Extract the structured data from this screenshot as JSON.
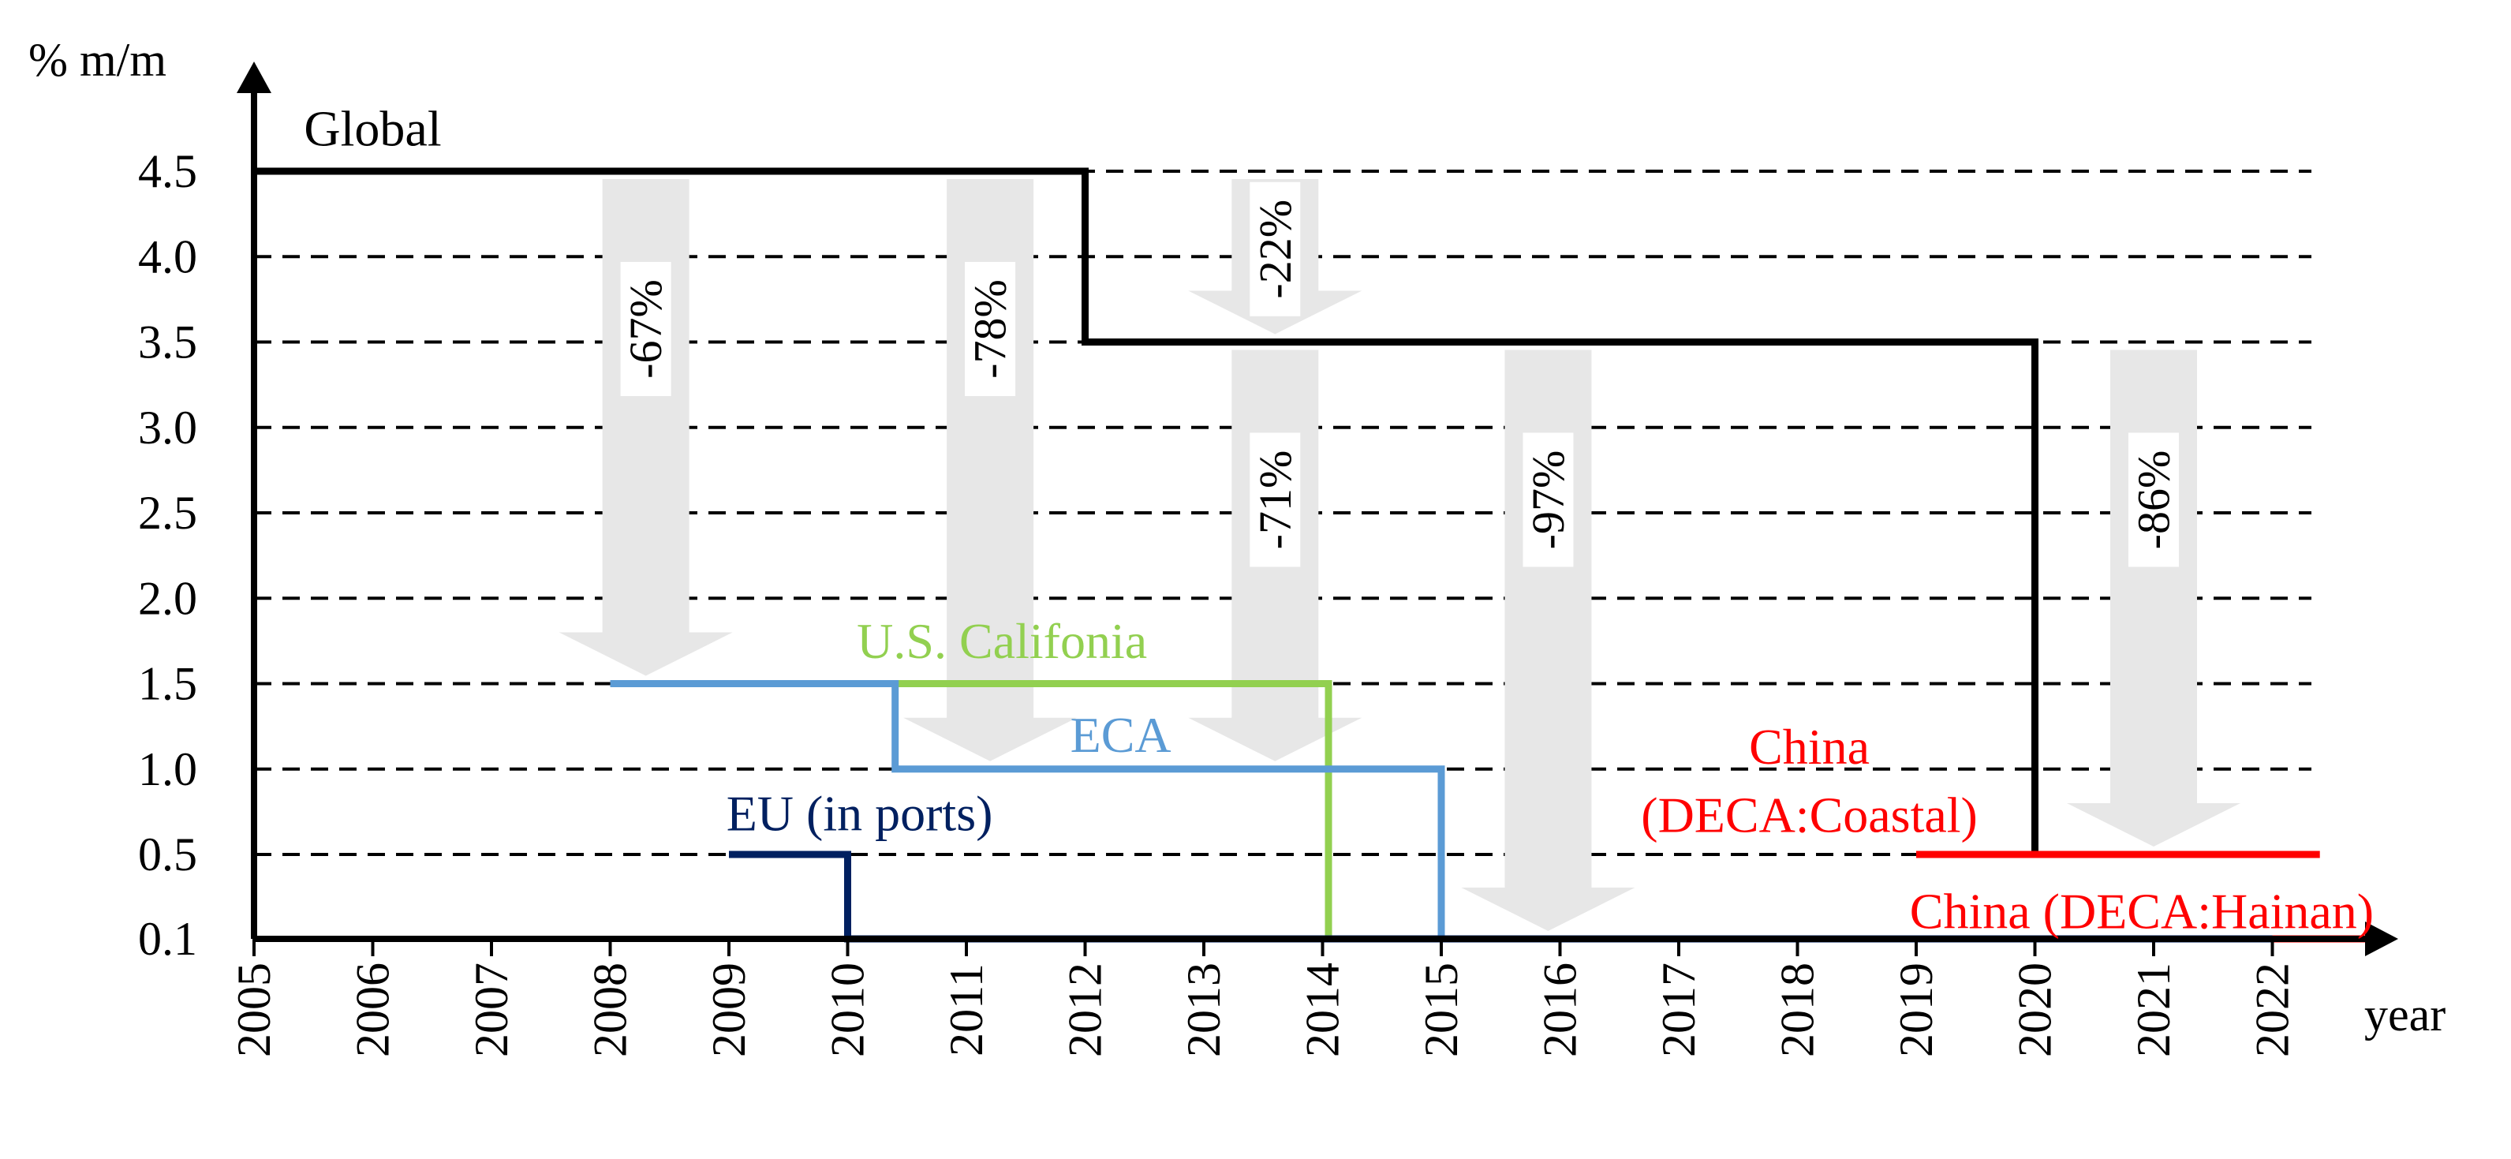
{
  "chart_data": {
    "type": "line",
    "title": "",
    "xlabel": "year",
    "ylabel": "% m/m",
    "x_ticks": [
      "2005",
      "2006",
      "2007",
      "2008",
      "2009",
      "2010",
      "2011",
      "2012",
      "2013",
      "2014",
      "2015",
      "2016",
      "2017",
      "2018",
      "2019",
      "2020",
      "2021",
      "2022"
    ],
    "y_ticks": [
      "0.1",
      "0.5",
      "1.0",
      "1.5",
      "2.0",
      "2.5",
      "3.0",
      "3.5",
      "4.0",
      "4.5"
    ],
    "y_tick_values": [
      0.1,
      0.5,
      1.0,
      1.5,
      2.0,
      2.5,
      3.0,
      3.5,
      4.0,
      4.5
    ],
    "xlim": [
      2005,
      2023.2
    ],
    "grid": "dashed horizontal",
    "series": [
      {
        "name": "Global",
        "color": "#000000",
        "points": [
          [
            2005,
            4.5
          ],
          [
            2012,
            4.5
          ],
          [
            2012,
            3.5
          ],
          [
            2020,
            3.5
          ],
          [
            2020,
            0.5
          ]
        ]
      },
      {
        "name": "U.S. Califonia",
        "color": "#92d050",
        "points": [
          [
            2009.1,
            1.5
          ],
          [
            2014.05,
            1.5
          ],
          [
            2014.05,
            0.1
          ],
          [
            2012,
            0.1
          ],
          [
            2022,
            0.1
          ]
        ]
      },
      {
        "name": "ECA",
        "color": "#5b9bd5",
        "points": [
          [
            2008,
            1.5
          ],
          [
            2010.4,
            1.5
          ],
          [
            2010.4,
            1.0
          ],
          [
            2015,
            1.0
          ],
          [
            2015,
            0.1
          ]
        ]
      },
      {
        "name": "EU (in ports)",
        "color": "#002060",
        "points": [
          [
            2009,
            0.5
          ],
          [
            2010,
            0.5
          ],
          [
            2010,
            0.1
          ],
          [
            2022,
            0.1
          ]
        ]
      },
      {
        "name": "China\n(DECA:Coastal)",
        "color": "#ff0000",
        "points": [
          [
            2019,
            0.5
          ],
          [
            2022.4,
            0.5
          ]
        ]
      },
      {
        "name": "China (DECA:Hainan)",
        "color": "#ff0000",
        "points": [
          [
            2022,
            0.1
          ],
          [
            2023,
            0.1
          ]
        ]
      }
    ],
    "labels": [
      {
        "text": "Global",
        "x": 2006.0,
        "y": 4.75,
        "color": "#000000"
      },
      {
        "text": "U.S. Califonia",
        "x": 2011.3,
        "y": 1.75,
        "color": "#92d050"
      },
      {
        "text": "ECA",
        "x": 2012.3,
        "y": 1.2,
        "color": "#5b9bd5"
      },
      {
        "text": "EU (in ports)",
        "x": 2010.1,
        "y": 0.74,
        "color": "#002060"
      },
      {
        "text": "China",
        "x": 2018.1,
        "y": 1.13,
        "color": "#ff0000"
      },
      {
        "text": "(DECA:Coastal)",
        "x": 2018.1,
        "y": 0.73,
        "color": "#ff0000"
      },
      {
        "text": "China (DECA:Hainan)",
        "x": 2020.9,
        "y": 0.23,
        "color": "#ff0000"
      }
    ],
    "reduction_arrows": [
      {
        "label": "-67%",
        "x": 2008.3,
        "from": 4.5,
        "to": 1.5
      },
      {
        "label": "-78%",
        "x": 2011.2,
        "from": 4.5,
        "to": 1.0
      },
      {
        "label": "-22%",
        "x": 2013.6,
        "from": 4.5,
        "to": 3.5
      },
      {
        "label": "-71%",
        "x": 2013.6,
        "from": 3.5,
        "to": 1.0
      },
      {
        "label": "-97%",
        "x": 2015.9,
        "from": 3.5,
        "to": 0.1
      },
      {
        "label": "-86%",
        "x": 2021.0,
        "from": 3.5,
        "to": 0.5
      }
    ]
  }
}
